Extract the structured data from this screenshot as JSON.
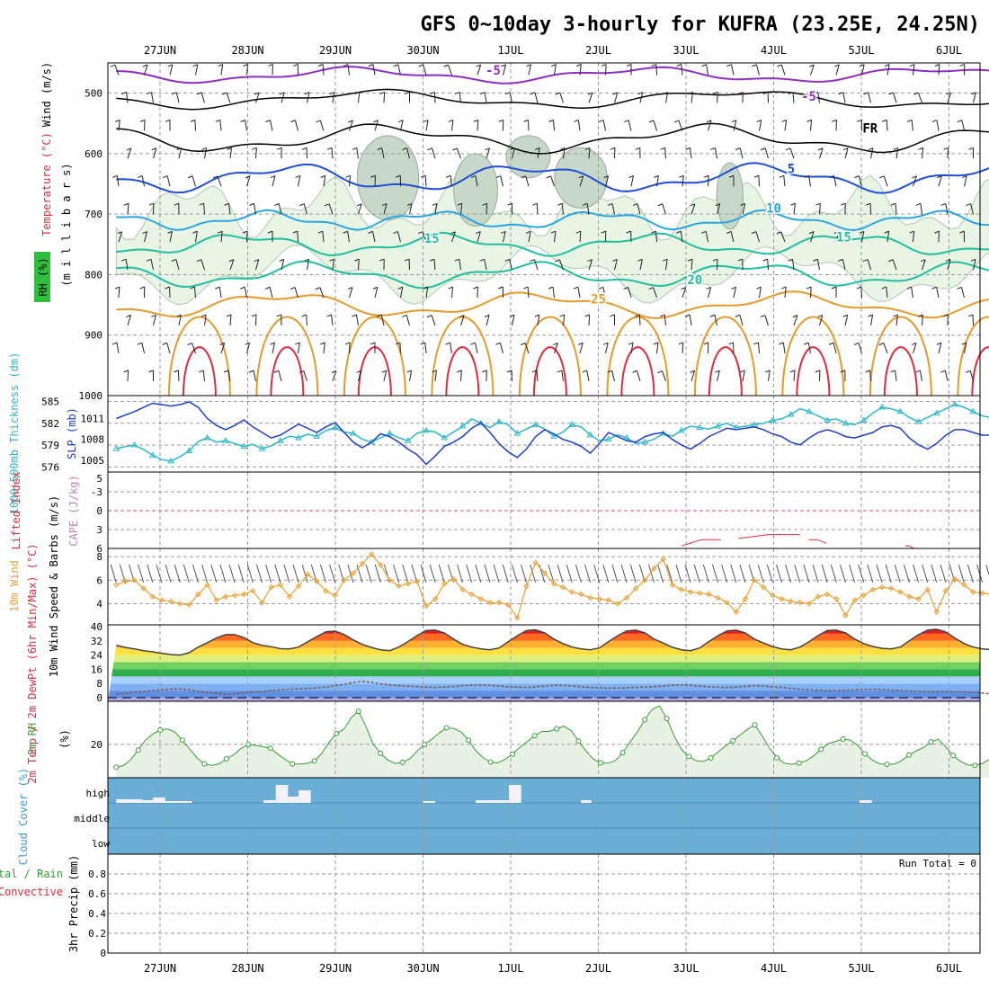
{
  "title": "GFS 0~10day 3-hourly for KUFRA (23.25E, 24.25N)",
  "dates": [
    "27JUN",
    "28JUN",
    "29JUN",
    "30JUN",
    "1JUL",
    "2JUL",
    "3JUL",
    "4JUL",
    "5JUL",
    "6JUL"
  ],
  "colors": {
    "purple": "#8e2fbf",
    "black": "#000000",
    "blue": "#1f4fd6",
    "cyan": "#2aa6e0",
    "teal": "#20bfa0",
    "orange": "#e39a2a",
    "red": "#e02a40",
    "rh_fill": "#e8f4e4",
    "thick": "#2ab8c8",
    "slp": "#1f3fc8",
    "wind10": "#e8a030",
    "rh2m": "#3a9a3a",
    "cloud": "#6aaed6",
    "cape": "#c080c0"
  },
  "chart_data": [
    {
      "type": "line",
      "name": "pressure-level",
      "ylabel_parts": [
        "Wind (m/s)",
        "Temperature (°C)",
        "RH (%)"
      ],
      "ylabel_right": "(m i l l i b a r s)",
      "y_ticks": [
        500,
        600,
        700,
        800,
        900,
        1000
      ],
      "ylim": [
        450,
        1000
      ],
      "contour_labels": [
        {
          "text": "-5",
          "x": 3.8,
          "p": 462,
          "color": "purple"
        },
        {
          "text": "-5",
          "x": 7.4,
          "p": 505,
          "color": "purple"
        },
        {
          "text": "FR",
          "x": 8.1,
          "p": 558,
          "color": "black"
        },
        {
          "text": "5",
          "x": 7.2,
          "p": 625,
          "color": "blue"
        },
        {
          "text": "10",
          "x": 7.0,
          "p": 690,
          "color": "cyan"
        },
        {
          "text": "15",
          "x": 3.1,
          "p": 740,
          "color": "teal"
        },
        {
          "text": "15",
          "x": 7.8,
          "p": 738,
          "color": "teal"
        },
        {
          "text": "20",
          "x": 6.1,
          "p": 808,
          "color": "teal"
        },
        {
          "text": "25",
          "x": 5.0,
          "p": 840,
          "color": "orange"
        }
      ]
    },
    {
      "type": "line",
      "name": "thickness-slp",
      "ylabel": "1000-500mb Thickness (dm)",
      "ylabel2": "SLP (mb)",
      "y_ticks_left": [
        576,
        579,
        582,
        585
      ],
      "y_ticks_right": [
        1005,
        1008,
        1011
      ],
      "thickness": [
        578.5,
        578.8,
        579.0,
        578.4,
        577.6,
        577.0,
        576.8,
        577.4,
        578.2,
        579.5,
        580.0,
        579.4,
        579.6,
        579.2,
        578.8,
        579.1,
        578.5,
        578.9,
        579.6,
        580.2,
        580.0,
        580.5,
        580.2,
        581.0,
        581.4,
        580.8,
        580.6,
        579.8,
        579.4,
        580.0,
        580.6,
        580.0,
        579.6,
        580.6,
        581.0,
        580.8,
        580.0,
        580.8,
        581.6,
        582.6,
        582.0,
        581.4,
        582.2,
        581.8,
        580.6,
        581.2,
        581.8,
        581.2,
        580.2,
        580.8,
        581.8,
        581.5,
        580.4,
        579.6,
        579.8,
        580.4,
        580.0,
        579.2,
        579.4,
        579.8,
        580.6,
        580.2,
        581.0,
        581.6,
        581.4,
        581.2,
        581.6,
        582.0,
        581.4,
        581.6,
        581.8,
        582.0,
        582.4,
        582.6,
        583.2,
        584.0,
        583.6,
        583.0,
        582.4,
        582.6,
        582.0,
        581.8,
        582.4,
        583.4,
        584.2,
        584.0,
        583.6,
        582.8,
        582.2,
        582.8,
        583.4,
        584.0,
        584.6,
        584.2,
        583.6,
        583.0,
        582.8,
        582.4,
        582.4,
        582.6
      ],
      "slp": [
        1011.0,
        1011.5,
        1012.0,
        1012.6,
        1013.2,
        1013.0,
        1012.8,
        1013.0,
        1013.4,
        1012.6,
        1011.0,
        1010.0,
        1009.4,
        1010.0,
        1010.8,
        1009.8,
        1009.0,
        1008.2,
        1008.6,
        1009.4,
        1010.2,
        1009.6,
        1009.0,
        1009.8,
        1010.4,
        1009.0,
        1007.6,
        1006.8,
        1007.6,
        1008.8,
        1008.4,
        1007.6,
        1006.6,
        1005.8,
        1004.4,
        1005.6,
        1007.0,
        1007.6,
        1008.4,
        1009.6,
        1010.4,
        1009.0,
        1007.4,
        1006.2,
        1005.4,
        1006.6,
        1008.4,
        1009.4,
        1008.8,
        1008.0,
        1007.6,
        1007.0,
        1006.0,
        1007.4,
        1009.0,
        1008.4,
        1007.8,
        1007.6,
        1008.4,
        1008.8,
        1009.0,
        1008.0,
        1007.2,
        1006.6,
        1007.4,
        1008.4,
        1009.0,
        1009.6,
        1009.4,
        1009.6,
        1009.8,
        1009.4,
        1008.8,
        1008.4,
        1007.6,
        1007.2,
        1008.2,
        1009.0,
        1009.4,
        1009.0,
        1008.4,
        1008.2,
        1008.6,
        1009.0,
        1009.8,
        1010.0,
        1009.6,
        1008.2,
        1007.2,
        1006.6,
        1007.4,
        1008.6,
        1009.4,
        1009.4,
        1009.0,
        1008.6,
        1008.6,
        1009.2,
        1009.8,
        1010.2
      ]
    },
    {
      "type": "line",
      "name": "cape-lifted-index",
      "ylabel": "Lifted Index",
      "ylabel2": "CAPE (J/kg)",
      "y_ticks_left": [
        "-3",
        "0",
        "3",
        "6"
      ],
      "y_ticks_top": [
        "5"
      ],
      "li_points": [
        [
          4.0,
          6.0
        ],
        [
          4.4,
          6.0
        ],
        [
          5.95,
          5.6
        ],
        [
          6.4,
          4.6
        ],
        [
          6.6,
          4.4
        ],
        [
          7.3,
          3.8
        ],
        [
          7.4,
          4.6
        ],
        [
          7.6,
          5.2
        ],
        [
          8.5,
          5.6
        ],
        [
          8.6,
          6.0
        ]
      ]
    },
    {
      "type": "line",
      "name": "wind10m",
      "ylabel": "10m Wind Speed & Barbs (m/s)",
      "y_ticks": [
        4,
        6,
        8
      ],
      "ylim": [
        2.2,
        8.7
      ],
      "values": [
        5.6,
        5.9,
        6.0,
        5.3,
        4.6,
        4.3,
        4.2,
        4.0,
        3.9,
        4.8,
        5.6,
        4.3,
        4.6,
        4.7,
        4.8,
        5.1,
        4.1,
        5.4,
        5.6,
        4.6,
        5.5,
        6.5,
        5.9,
        5.1,
        4.7,
        6.0,
        6.6,
        7.4,
        8.2,
        7.3,
        6.0,
        5.5,
        5.7,
        5.9,
        3.8,
        4.4,
        5.7,
        6.1,
        5.2,
        4.8,
        4.4,
        4.1,
        4.1,
        3.9,
        2.8,
        5.5,
        7.5,
        6.6,
        5.7,
        5.4,
        5.0,
        4.8,
        4.5,
        4.4,
        4.3,
        4.0,
        4.5,
        5.3,
        6.0,
        7.0,
        7.8,
        5.6,
        5.2,
        5.0,
        4.9,
        4.8,
        4.5,
        4.1,
        3.3,
        4.4,
        6.0,
        5.4,
        4.7,
        4.4,
        4.2,
        4.1,
        4.0,
        4.6,
        4.8,
        4.4,
        3.0,
        4.3,
        4.7,
        5.2,
        5.4,
        5.3,
        5.0,
        4.6,
        4.4,
        5.2,
        3.3,
        5.1,
        6.1,
        5.6,
        5.0,
        4.9,
        4.8,
        4.3,
        4.5,
        4.2
      ]
    },
    {
      "type": "area",
      "name": "temperature-2m",
      "ylabel": "2m Temp / 2m DewPt (6hr Min/Max) (°C)",
      "y_ticks": [
        0,
        8,
        16,
        24,
        32,
        40
      ],
      "ylim": [
        -2,
        41
      ],
      "temp": [
        29.5,
        28.3,
        27.5,
        26.5,
        25.8,
        25.0,
        24.3,
        24.0,
        25.3,
        28.5,
        31.0,
        33.6,
        35.5,
        35.5,
        33.8,
        31.0,
        29.5,
        28.7,
        27.6,
        27.5,
        28.5,
        31.5,
        34.3,
        37.1,
        37.5,
        35.6,
        32.5,
        30.0,
        28.3,
        27.0,
        26.5,
        28.5,
        31.6,
        35.0,
        37.8,
        38.0,
        36.4,
        33.0,
        30.0,
        28.5,
        27.5,
        27.0,
        28.0,
        31.5,
        34.9,
        37.8,
        38.2,
        36.5,
        33.0,
        30.5,
        28.5,
        27.5,
        27.0,
        28.0,
        31.5,
        34.9,
        37.6,
        38.0,
        36.5,
        33.0,
        30.8,
        28.4,
        27.0,
        26.5,
        28.0,
        31.6,
        34.9,
        37.6,
        38.0,
        36.5,
        33.0,
        30.8,
        28.8,
        27.4,
        27.0,
        28.5,
        31.5,
        35.0,
        37.8,
        38.0,
        36.5,
        33.0,
        30.5,
        28.8,
        27.8,
        27.5,
        28.5,
        32.0,
        35.5,
        38.0,
        38.5,
        37.0,
        33.5,
        30.5,
        28.5,
        27.5,
        27.0,
        28.0,
        29.5,
        30.0
      ],
      "dewpoint": [
        2.0,
        2.5,
        3.0,
        3.5,
        4.0,
        4.5,
        4.8,
        5.0,
        4.5,
        3.5,
        3.0,
        2.5,
        2.0,
        2.2,
        2.8,
        3.2,
        3.5,
        4.0,
        4.5,
        4.8,
        5.0,
        5.2,
        5.5,
        6.0,
        6.8,
        7.5,
        8.5,
        9.2,
        8.6,
        7.8,
        7.2,
        6.8,
        6.5,
        6.2,
        6.0,
        5.8,
        6.0,
        6.4,
        6.8,
        7.0,
        7.2,
        7.0,
        6.6,
        6.2,
        6.0,
        5.8,
        6.2,
        6.6,
        7.0,
        7.0,
        6.6,
        6.2,
        5.8,
        5.6,
        5.4,
        5.4,
        5.6,
        5.8,
        6.0,
        6.2,
        6.6,
        7.0,
        7.2,
        7.0,
        6.6,
        6.2,
        6.0,
        5.8,
        6.0,
        6.4,
        6.8,
        6.6,
        6.2,
        5.8,
        5.2,
        4.8,
        4.4,
        4.2,
        4.0,
        4.0,
        4.2,
        4.4,
        4.6,
        4.8,
        4.6,
        4.2,
        4.0,
        3.8,
        3.6,
        3.4,
        3.5,
        3.5,
        3.4,
        3.2,
        3.0,
        2.6,
        2.2,
        1.8,
        1.5,
        1.2
      ]
    },
    {
      "type": "area",
      "name": "rh-2m",
      "ylabel": "2m RH",
      "y_unit": "(%)",
      "y_ticks": [
        20
      ],
      "ylim": [
        6,
        38
      ],
      "values": [
        10.4,
        11.1,
        13.6,
        17.6,
        21.8,
        24.3,
        26.0,
        26.4,
        25.2,
        21.7,
        18.1,
        14.3,
        11.8,
        11.2,
        11.8,
        13.9,
        15.6,
        18.2,
        19.9,
        19.5,
        19.0,
        18.4,
        15.9,
        13.7,
        11.8,
        11.7,
        12.0,
        13.0,
        16.2,
        20.8,
        24.5,
        26.3,
        31.1,
        33.8,
        27.7,
        20.1,
        16.2,
        13.4,
        12.0,
        12.4,
        13.9,
        17.2,
        19.9,
        22.1,
        24.7,
        26.9,
        26.6,
        25.2,
        21.7,
        17.3,
        14.3,
        12.6,
        12.2,
        13.7,
        15.9,
        18.8,
        21.2,
        23.6,
        25.4,
        25.4,
        26.5,
        27.6,
        25.6,
        21.3,
        17.2,
        13.8,
        12.2,
        12.1,
        13.1,
        16.5,
        21.0,
        25.2,
        30.3,
        34.6,
        36.1,
        30.8,
        23.6,
        17.9,
        14.9,
        13.1,
        12.8,
        14.3,
        16.8,
        19.3,
        21.5,
        23.9,
        26.3,
        28.1,
        23.5,
        18.4,
        14.4,
        12.1,
        11.6,
        12.1,
        13.1,
        15.1,
        17.9,
        20.3,
        21.2,
        22.2,
        21.8,
        19.5,
        16.0,
        13.4,
        11.8,
        11.6,
        11.7,
        13.2,
        15.5,
        17.3,
        18.7,
        21.0,
        22.1,
        18.9,
        15.3,
        12.9,
        11.4,
        11.2,
        12.0,
        13.7,
        15.8,
        17.5,
        18.4,
        17.5
      ]
    },
    {
      "type": "bar",
      "name": "cloud-cover",
      "ylabel": "Cloud Cover (%)",
      "levels": [
        "high",
        "middle",
        "low"
      ],
      "high_cover": [
        {
          "x": 0.0,
          "w": 0.3,
          "v": 4
        },
        {
          "x": 0.3,
          "w": 0.12,
          "v": 3
        },
        {
          "x": 0.42,
          "w": 0.14,
          "v": 6
        },
        {
          "x": 0.56,
          "w": 0.3,
          "v": 2
        },
        {
          "x": 1.68,
          "w": 0.14,
          "v": 3
        },
        {
          "x": 1.82,
          "w": 0.14,
          "v": 20
        },
        {
          "x": 1.96,
          "w": 0.12,
          "v": 7
        },
        {
          "x": 2.08,
          "w": 0.14,
          "v": 14
        },
        {
          "x": 3.5,
          "w": 0.14,
          "v": 2
        },
        {
          "x": 4.1,
          "w": 0.38,
          "v": 3
        },
        {
          "x": 4.48,
          "w": 0.14,
          "v": 20
        },
        {
          "x": 5.3,
          "w": 0.12,
          "v": 3
        },
        {
          "x": 8.48,
          "w": 0.14,
          "v": 3
        }
      ]
    },
    {
      "type": "bar",
      "name": "precipitation",
      "ylabel": "3hr Precip (mm)",
      "ylabel2": "Total / Rain",
      "ylabel3": "Convective",
      "y_ticks": [
        "0",
        "0.2",
        "0.4",
        "0.6",
        "0.8"
      ],
      "ylim": [
        0,
        1.0
      ],
      "run_total": "Run Total = 0",
      "values": []
    }
  ]
}
